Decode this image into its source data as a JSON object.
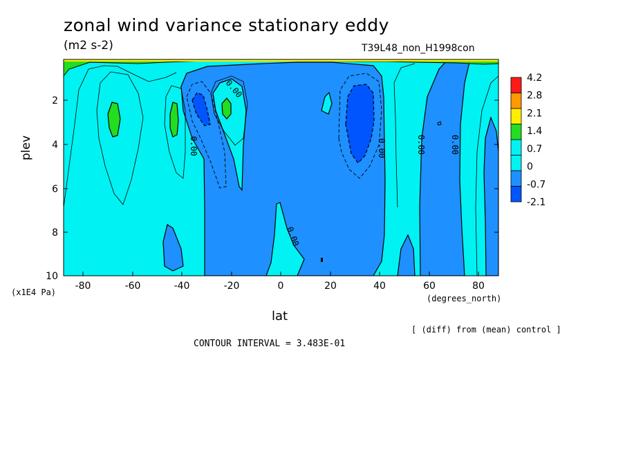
{
  "chart_data": {
    "type": "contour",
    "title": "zonal wind variance stationary eddy",
    "units": "(m2 s-2)",
    "run_label": "T39L48_non_H1998con",
    "xlabel": "lat",
    "x_units": "(degrees_north)",
    "ylabel": "plev",
    "y_units": "(x1E4 Pa)",
    "xlim": [
      -88,
      88
    ],
    "ylim": [
      10,
      0
    ],
    "x_ticks": [
      "-80",
      "-60",
      "-40",
      "-20",
      "0",
      "20",
      "40",
      "60",
      "80"
    ],
    "y_ticks": [
      "2",
      "4",
      "6",
      "8",
      "10"
    ],
    "contour_labels": [
      "0.00",
      "0.00",
      "0.00",
      "0.00",
      "0.00",
      "0.00"
    ],
    "contour_interval": "CONTOUR INTERVAL = 3.483E-01",
    "note": "[ (diff) from (mean) control ]",
    "colorbar": {
      "levels": [
        "4.2",
        "2.8",
        "2.1",
        "1.4",
        "0.7",
        "0",
        "-0.7",
        "-2.1"
      ],
      "colors": [
        "#ff1a1a",
        "#ff9900",
        "#ffee00",
        "#22dd22",
        "#00f2f2",
        "#00f2f2",
        "#1e90ff",
        "#0055ff"
      ]
    },
    "colors": {
      "near_zero": "#00f2f2",
      "weak_negative": "#1e90ff",
      "strong_negative": "#0055ff",
      "positive": "#22dd22"
    },
    "regions": [
      {
        "kind": "negative-column",
        "lat_range": [
          -32,
          44
        ],
        "plev_range": [
          0.2,
          10
        ]
      },
      {
        "kind": "negative-column",
        "lat_range": [
          60,
          72
        ],
        "plev_range": [
          0,
          10
        ]
      },
      {
        "kind": "negative-column",
        "lat_range": [
          82,
          88
        ],
        "plev_range": [
          2,
          10
        ]
      },
      {
        "kind": "positive-max",
        "center": [
          -68,
          2.8
        ]
      },
      {
        "kind": "positive-max",
        "center": [
          -43,
          2.7
        ]
      },
      {
        "kind": "positive-max",
        "center": [
          -22,
          2.4
        ]
      },
      {
        "kind": "strong-negative",
        "center": [
          -33,
          2.2
        ]
      },
      {
        "kind": "strong-negative",
        "center": [
          31,
          2.8
        ]
      }
    ]
  }
}
